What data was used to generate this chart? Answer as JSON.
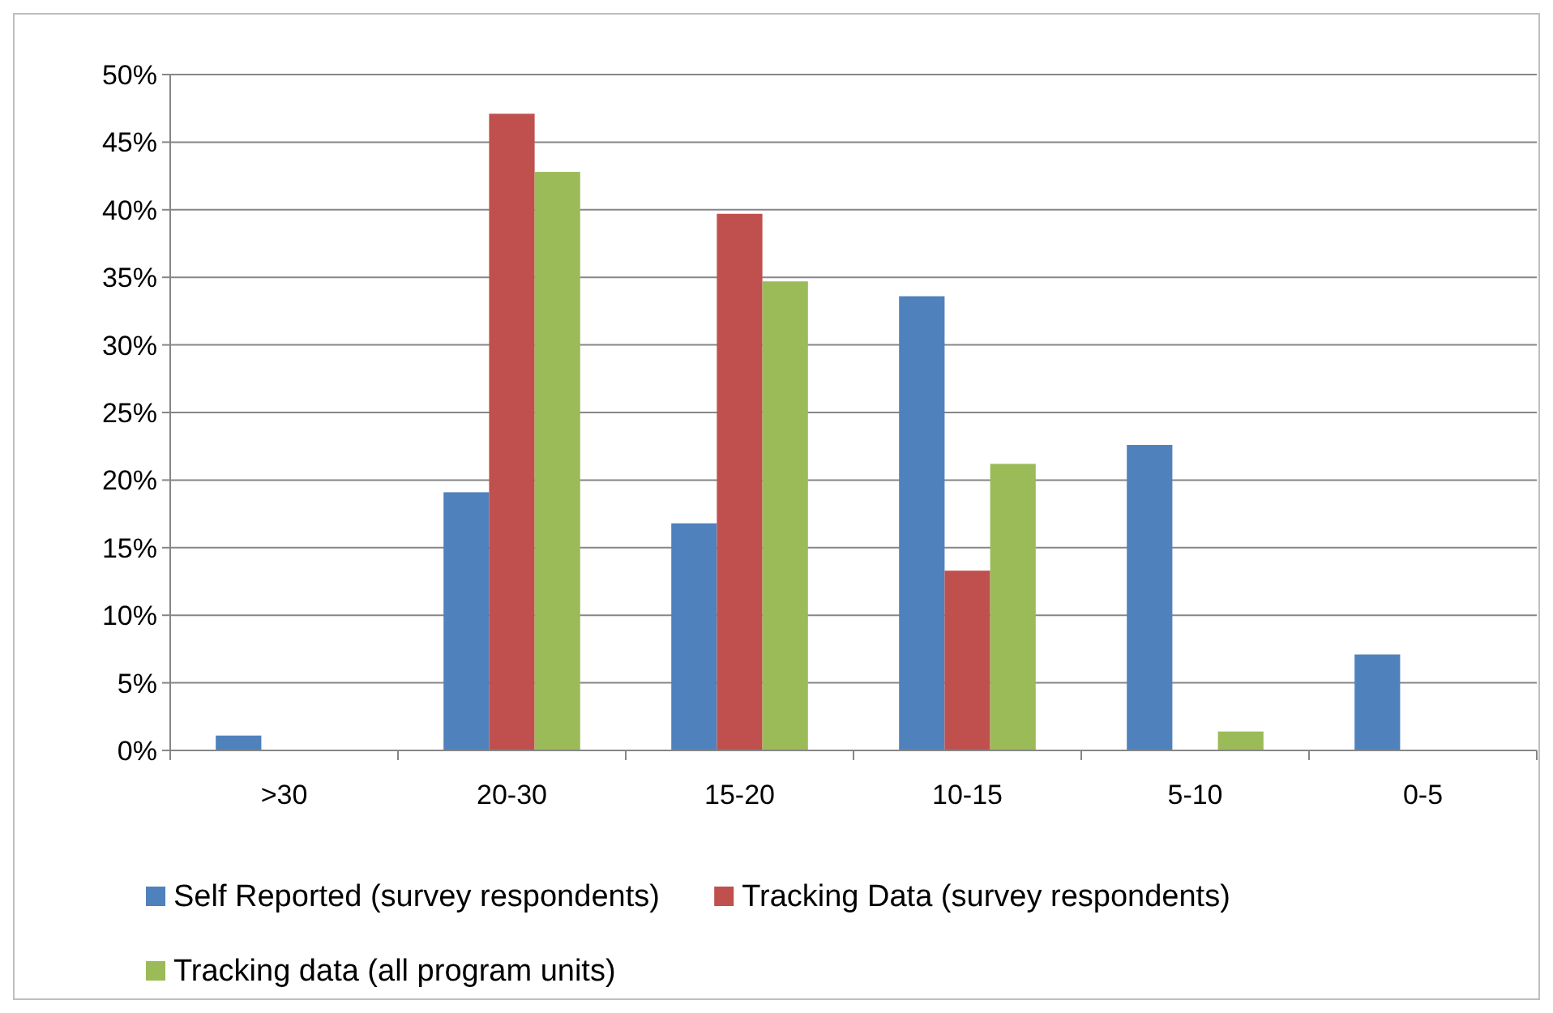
{
  "chart_data": {
    "type": "bar",
    "categories": [
      ">30",
      "20-30",
      "15-20",
      "10-15",
      "5-10",
      "0-5"
    ],
    "series": [
      {
        "name": "Self Reported (survey respondents)",
        "color": "#4f81bd",
        "values": [
          1.1,
          19.1,
          16.8,
          33.6,
          22.6,
          7.1
        ]
      },
      {
        "name": "Tracking Data (survey respondents)",
        "color": "#c0504d",
        "values": [
          0,
          47.1,
          39.7,
          13.3,
          0,
          0
        ]
      },
      {
        "name": "Tracking data (all program units)",
        "color": "#9bbb59",
        "values": [
          0,
          42.8,
          34.7,
          21.2,
          1.4,
          0
        ]
      }
    ],
    "ylim": [
      0,
      50
    ],
    "yticks": [
      {
        "value": 0,
        "label": "0%"
      },
      {
        "value": 5,
        "label": "5%"
      },
      {
        "value": 10,
        "label": "10%"
      },
      {
        "value": 15,
        "label": "15%"
      },
      {
        "value": 20,
        "label": "20%"
      },
      {
        "value": 25,
        "label": "25%"
      },
      {
        "value": 30,
        "label": "30%"
      },
      {
        "value": 35,
        "label": "35%"
      },
      {
        "value": 40,
        "label": "40%"
      },
      {
        "value": 45,
        "label": "45%"
      },
      {
        "value": 50,
        "label": "50%"
      }
    ],
    "grid": "y",
    "legend": "bottom"
  }
}
